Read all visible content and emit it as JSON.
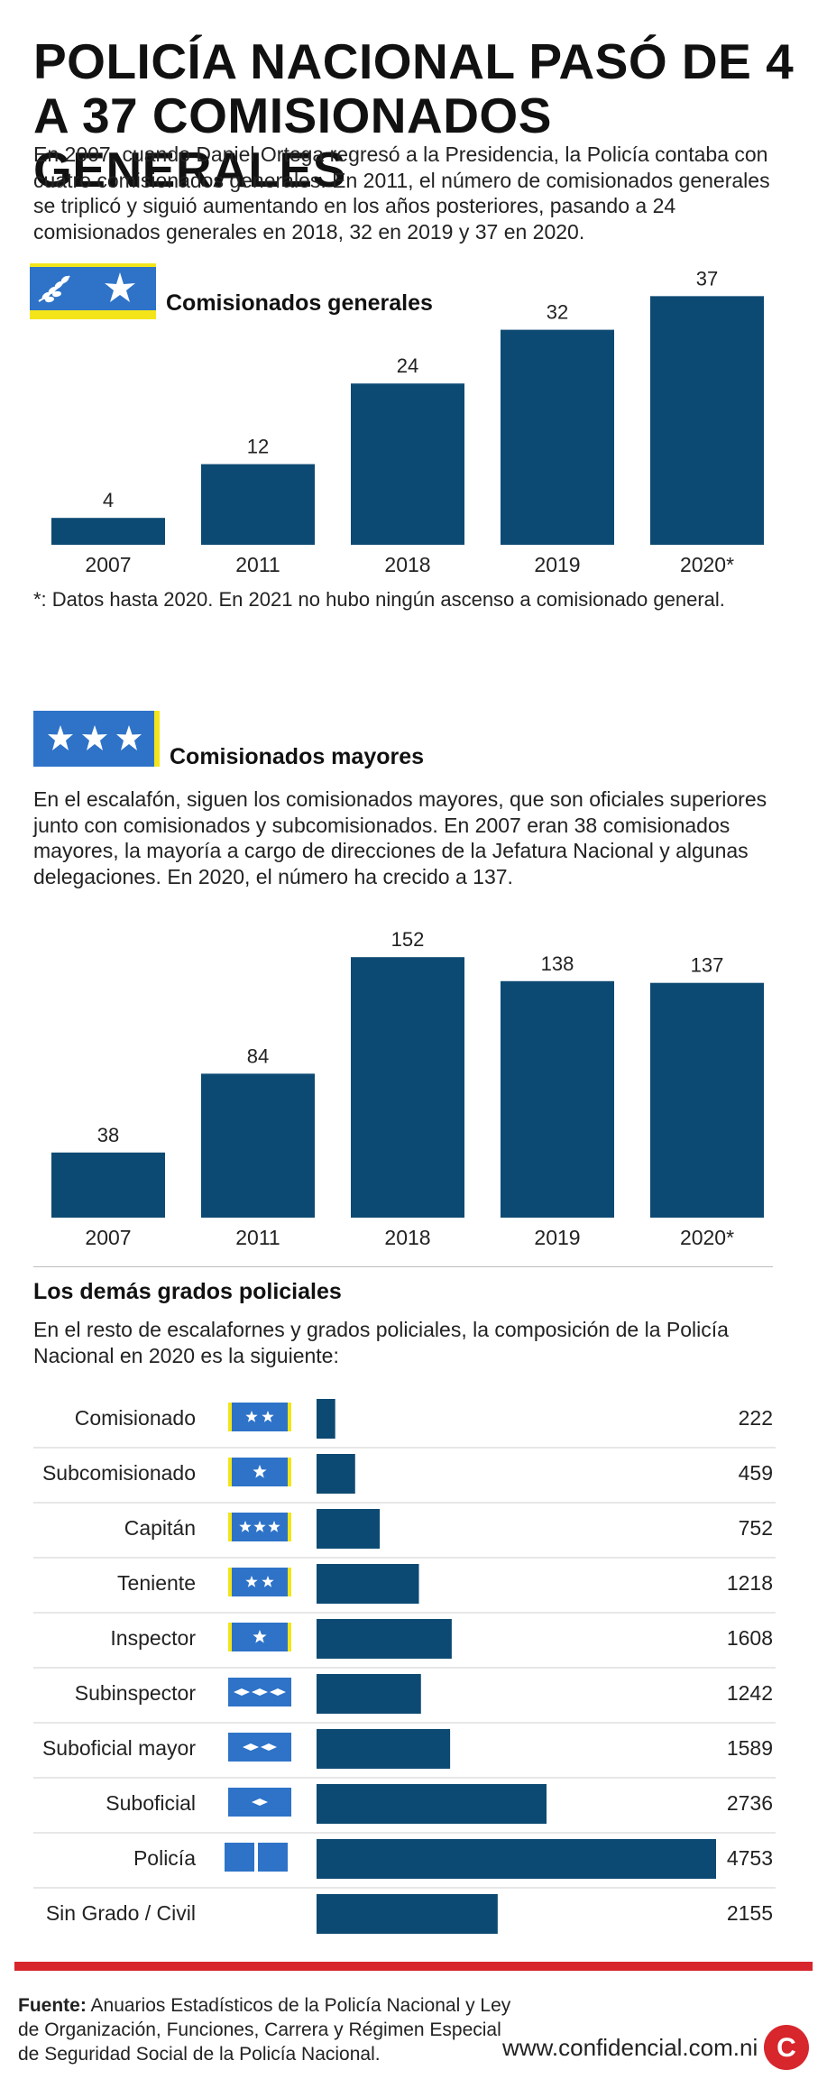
{
  "header": {
    "title_line1": "Policía Nacional pasó de 4",
    "title_line2": "a 37 comisionados generales",
    "intro": "En 2007, cuando Daniel Ortega regresó a la Presidencia, la Policía contaba con cuatro comisionados generales. En 2011, el número de comisionados generales se triplicó y siguió aumentando en los años posteriores, pasando a 24 comisionados generales en 2018, 32 en 2019 y 37 en 2020."
  },
  "section1": {
    "title": "Comisionados generales",
    "footnote": "*: Datos hasta 2020. En 2021 no hubo ningún ascenso a comisionado general."
  },
  "section2": {
    "title": "Comisionados mayores",
    "intro": "En el escalafón, siguen los comisionados mayores, que son oficiales superiores junto con comisionados y subcomisionados. En 2007 eran 38 comisionados mayores, la mayoría a cargo de direcciones de la Jefatura Nacional y algunas delegaciones. En 2020, el número ha crecido a 137."
  },
  "section3": {
    "title": "Los demás grados policiales",
    "intro": "En el resto de escalafornes y grados policiales, la composición de la Policía Nacional en 2020 es la siguiente:"
  },
  "footer": {
    "source_label": "Fuente:",
    "source_text": "Anuarios Estadísticos de la Policía Nacional y Ley de Organización, Funciones, Carrera y Régimen Especial de Seguridad Social de la Policía Nacional.",
    "url": "www.confidencial.com.ni",
    "logo_letter": "C"
  },
  "colors": {
    "bar": "#0d4a73",
    "insignia_blue": "#2e73c8",
    "insignia_yellow": "#f3e51a",
    "red_rule": "#d7262c",
    "logo_red": "#d7262c"
  },
  "chart_data": [
    {
      "type": "bar",
      "title": "Comisionados generales",
      "categories": [
        "2007",
        "2011",
        "2018",
        "2019",
        "2020*"
      ],
      "values": [
        4,
        12,
        24,
        32,
        37
      ]
    },
    {
      "type": "bar",
      "title": "Comisionados mayores",
      "categories": [
        "2007",
        "2011",
        "2018",
        "2019",
        "2020*"
      ],
      "values": [
        38,
        84,
        152,
        138,
        137
      ]
    },
    {
      "type": "bar",
      "orientation": "horizontal",
      "title": "Los demás grados policiales",
      "categories": [
        "Comisionado",
        "Subcomisionado",
        "Capitán",
        "Teniente",
        "Inspector",
        "Subinspector",
        "Suboficial mayor",
        "Suboficial",
        "Policía",
        "Sin Grado / Civil"
      ],
      "values": [
        222,
        459,
        752,
        1218,
        1608,
        1242,
        1589,
        2736,
        4753,
        2155
      ],
      "insignia": [
        "2-stars-yellow",
        "1-star-yellow",
        "3-stars",
        "2-stars",
        "1-star",
        "3-diamonds",
        "2-diamonds",
        "1-diamond",
        "2-blocks",
        "none"
      ]
    }
  ]
}
